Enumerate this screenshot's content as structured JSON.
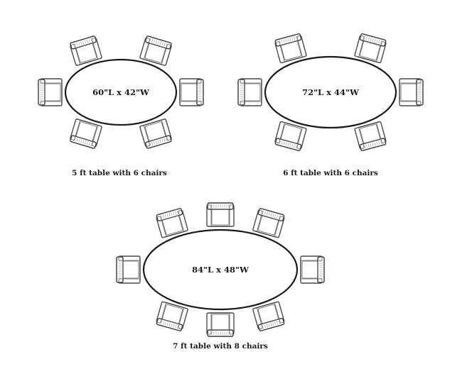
{
  "diagrams": [
    {
      "dimensions": "60\"L x 42\"W",
      "caption": "5 ft table with 6 chairs",
      "chairs": 6
    },
    {
      "dimensions": "72\"L x 44\"W",
      "caption": "6 ft table with 6 chairs",
      "chairs": 6
    },
    {
      "dimensions": "84\"L x 48\"W",
      "caption": "7 ft table with 8 chairs",
      "chairs": 8
    }
  ]
}
